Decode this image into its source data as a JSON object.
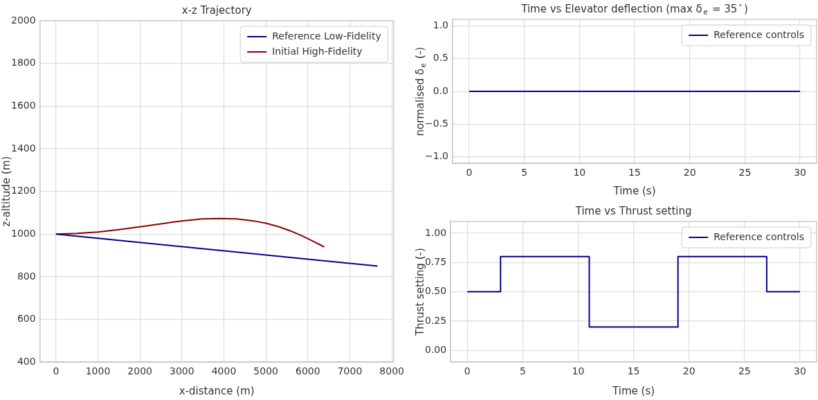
{
  "chart_data": [
    {
      "type": "line",
      "title": "x-z Trajectory",
      "xlabel": "x-distance (m)",
      "ylabel": "z-altitude (m)",
      "xlim": [
        -383,
        8043
      ],
      "ylim": [
        400,
        2000
      ],
      "xticks": [
        0,
        1000,
        2000,
        3000,
        4000,
        5000,
        6000,
        7000,
        8000
      ],
      "yticks": [
        400,
        600,
        800,
        1000,
        1200,
        1400,
        1600,
        1800,
        2000
      ],
      "grid": true,
      "legend": "top right",
      "series": [
        {
          "name": "Reference Low-Fidelity",
          "color": "#00008b",
          "x": [
            0,
            7660
          ],
          "values": [
            1000,
            850
          ]
        },
        {
          "name": "Initial High-Fidelity",
          "color": "#8b0000",
          "x": [
            0,
            500,
            1000,
            1500,
            2000,
            2500,
            3000,
            3500,
            3900,
            4300,
            4700,
            5000,
            5300,
            5600,
            5900,
            6100,
            6390
          ],
          "values": [
            1000,
            1003,
            1010,
            1021,
            1034,
            1048,
            1062,
            1071,
            1073,
            1071,
            1062,
            1051,
            1035,
            1014,
            988,
            969,
            940
          ]
        }
      ]
    },
    {
      "type": "line",
      "title": "Time vs Elevator deflection (max δ$_{e}$ = 35$^{∘}$)",
      "xlabel": "Time (s)",
      "ylabel": "normalised δ$_{e}$ (-)",
      "xlim": [
        -1.5,
        31.5
      ],
      "ylim": [
        -1.1,
        1.1
      ],
      "xticks": [
        0,
        5,
        10,
        15,
        20,
        25,
        30
      ],
      "yticks": [
        {
          "value": -1,
          "label": "−1.0"
        },
        {
          "value": -0.5,
          "label": "−0.5"
        },
        {
          "value": 0,
          "label": "0.0"
        },
        {
          "value": 0.5,
          "label": "0.5"
        },
        {
          "value": 1,
          "label": "1.0"
        }
      ],
      "grid": true,
      "legend": "top right",
      "series": [
        {
          "name": "Reference controls",
          "color": "#00008b",
          "x": [
            0,
            30
          ],
          "values": [
            0,
            0
          ]
        }
      ]
    },
    {
      "type": "step",
      "title": "Time vs Thrust setting",
      "xlabel": "Time (s)",
      "ylabel": "Thrust setting (-)",
      "xlim": [
        -1.5,
        31.5
      ],
      "ylim": [
        -0.1,
        1.1
      ],
      "xticks": [
        0,
        5,
        10,
        15,
        20,
        25,
        30
      ],
      "yticks": [
        {
          "value": 0,
          "label": "0.00"
        },
        {
          "value": 0.25,
          "label": "0.25"
        },
        {
          "value": 0.5,
          "label": "0.50"
        },
        {
          "value": 0.75,
          "label": "0.75"
        },
        {
          "value": 1,
          "label": "1.00"
        }
      ],
      "grid": true,
      "legend": "top right",
      "series": [
        {
          "name": "Reference controls",
          "color": "#00008b",
          "x": [
            0,
            3,
            11,
            19,
            27,
            30
          ],
          "values": [
            0.5,
            0.8,
            0.2,
            0.8,
            0.5,
            0.5
          ]
        }
      ]
    }
  ]
}
